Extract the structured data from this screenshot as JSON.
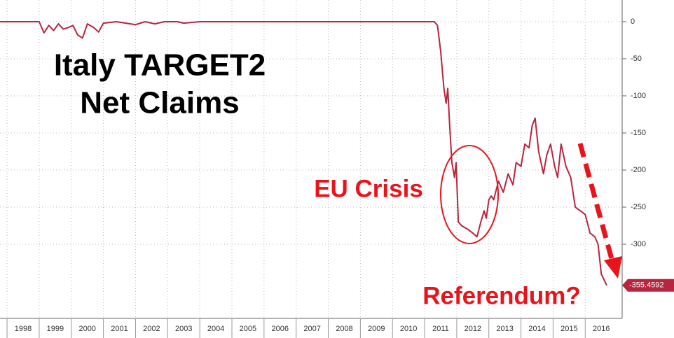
{
  "chart_data": {
    "type": "line",
    "title_lines": [
      "Italy TARGET2",
      "Net Claims"
    ],
    "annotations": [
      "EU Crisis",
      "Referendum?"
    ],
    "last_value_label": "-355.4592",
    "x": [
      1997.78,
      1999.0,
      1999.15,
      1999.3,
      1999.45,
      1999.6,
      1999.75,
      1999.9,
      2000.05,
      2000.2,
      2000.35,
      2000.5,
      2000.7,
      2000.85,
      2001.0,
      2001.4,
      2002.0,
      2002.3,
      2002.6,
      2002.9,
      2003.3,
      2003.5,
      2004.0,
      2005.0,
      2006.0,
      2007.0,
      2008.0,
      2009.0,
      2010.0,
      2011.0,
      2011.3,
      2011.4,
      2011.5,
      2011.6,
      2011.67,
      2011.72,
      2011.78,
      2011.85,
      2011.93,
      2011.98,
      2012.05,
      2012.15,
      2012.35,
      2012.5,
      2012.63,
      2012.75,
      2012.85,
      2012.92,
      2013.0,
      2013.07,
      2013.15,
      2013.3,
      2013.45,
      2013.6,
      2013.75,
      2013.85,
      2014.0,
      2014.12,
      2014.25,
      2014.35,
      2014.44,
      2014.55,
      2014.7,
      2014.8,
      2014.92,
      2015.05,
      2015.14,
      2015.25,
      2015.4,
      2015.55,
      2015.69,
      2015.85,
      2016.0,
      2016.15,
      2016.3,
      2016.4,
      2016.5,
      2016.67
    ],
    "series": [
      {
        "name": "Italy TARGET2 Net Claims",
        "color": "#b8253e",
        "values": [
          0,
          0,
          -15,
          -5,
          -12,
          -3,
          -10,
          -8,
          -5,
          -18,
          -22,
          -3,
          -8,
          -14,
          -2,
          0,
          -4,
          0,
          -3,
          0,
          0,
          -2,
          0,
          0,
          0,
          0,
          0,
          0,
          0,
          0,
          0,
          -5,
          -40,
          -90,
          -110,
          -90,
          -140,
          -190,
          -210,
          -190,
          -270,
          -275,
          -280,
          -285,
          -290,
          -270,
          -255,
          -265,
          -240,
          -235,
          -240,
          -215,
          -230,
          -205,
          -220,
          -190,
          -195,
          -165,
          -170,
          -140,
          -130,
          -175,
          -205,
          -180,
          -165,
          -195,
          -210,
          -165,
          -195,
          -210,
          -250,
          -255,
          -260,
          -285,
          -290,
          -300,
          -340,
          -355.4592
        ]
      }
    ],
    "xlim": [
      1997.78,
      2017.15
    ],
    "xticks": [
      1998,
      1999,
      2000,
      2001,
      2002,
      2003,
      2004,
      2005,
      2006,
      2007,
      2008,
      2009,
      2010,
      2011,
      2012,
      2013,
      2014,
      2015,
      2016
    ],
    "ylim": [
      -400,
      29.2
    ],
    "yticks": [
      0,
      -50,
      -100,
      -150,
      -200,
      -250,
      -300
    ],
    "grid": true
  }
}
